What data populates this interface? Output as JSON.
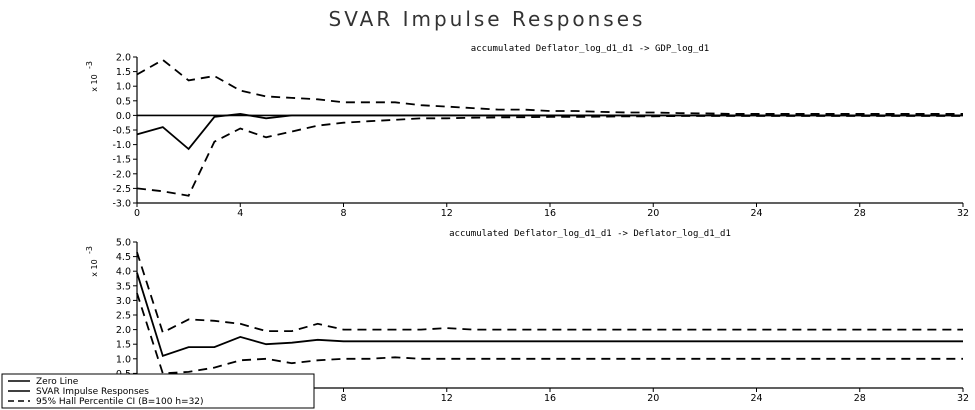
{
  "title": "SVAR Impulse Responses",
  "legend": {
    "items": [
      {
        "label": "Zero Line",
        "style": "solid"
      },
      {
        "label": "SVAR Impulse Responses",
        "style": "solid"
      },
      {
        "label": "95% Hall Percentile CI (B=100 h=32)",
        "style": "dashed"
      }
    ]
  },
  "chart_data": [
    {
      "type": "line",
      "title": "accumulated Deflator_log_d1_d1 -> GDP_log_d1",
      "scale_label": "x 10",
      "scale_exponent": "-3",
      "xlim": [
        0,
        32
      ],
      "ylim": [
        -3.0,
        2.0
      ],
      "xticks": [
        "0",
        "4",
        "8",
        "12",
        "16",
        "20",
        "24",
        "28",
        "32"
      ],
      "yticks": [
        "2.0",
        "1.5",
        "1.0",
        "0.5",
        "0.0",
        "-0.5",
        "-1.0",
        "-1.5",
        "-2.0",
        "-2.5",
        "-3.0"
      ],
      "x": [
        0,
        1,
        2,
        3,
        4,
        5,
        6,
        7,
        8,
        9,
        10,
        11,
        12,
        13,
        14,
        15,
        16,
        17,
        18,
        19,
        20,
        21,
        22,
        23,
        24,
        25,
        26,
        27,
        28,
        29,
        30,
        31,
        32
      ],
      "series": [
        {
          "name": "Zero Line",
          "style": "solid",
          "values": [
            0,
            0,
            0,
            0,
            0,
            0,
            0,
            0,
            0,
            0,
            0,
            0,
            0,
            0,
            0,
            0,
            0,
            0,
            0,
            0,
            0,
            0,
            0,
            0,
            0,
            0,
            0,
            0,
            0,
            0,
            0,
            0,
            0
          ]
        },
        {
          "name": "SVAR Impulse Responses",
          "style": "solid",
          "values": [
            -0.65,
            -0.4,
            -1.15,
            -0.05,
            0.05,
            -0.1,
            0.0,
            0.0,
            0.0,
            0.0,
            0.0,
            0.0,
            0.0,
            0.0,
            0.0,
            0.0,
            0.0,
            0.0,
            0.0,
            0.0,
            0.0,
            0.0,
            0.0,
            0.0,
            0.0,
            0.0,
            0.0,
            0.0,
            0.0,
            0.0,
            0.0,
            0.0,
            0.0
          ]
        },
        {
          "name": "95% Hall Percentile CI upper",
          "style": "dashed",
          "values": [
            1.4,
            1.9,
            1.2,
            1.35,
            0.85,
            0.65,
            0.6,
            0.55,
            0.45,
            0.45,
            0.45,
            0.35,
            0.3,
            0.25,
            0.2,
            0.2,
            0.15,
            0.15,
            0.12,
            0.1,
            0.1,
            0.08,
            0.07,
            0.05,
            0.05,
            0.05,
            0.05,
            0.05,
            0.05,
            0.05,
            0.05,
            0.05,
            0.05
          ]
        },
        {
          "name": "95% Hall Percentile CI lower",
          "style": "dashed",
          "values": [
            -2.5,
            -2.6,
            -2.75,
            -0.9,
            -0.45,
            -0.75,
            -0.55,
            -0.35,
            -0.25,
            -0.2,
            -0.15,
            -0.1,
            -0.1,
            -0.08,
            -0.07,
            -0.06,
            -0.05,
            -0.05,
            -0.04,
            -0.03,
            -0.03,
            -0.02,
            -0.02,
            -0.02,
            -0.02,
            -0.02,
            -0.02,
            -0.02,
            -0.02,
            -0.02,
            -0.02,
            -0.02,
            -0.02
          ]
        }
      ]
    },
    {
      "type": "line",
      "title": "accumulated Deflator_log_d1_d1 -> Deflator_log_d1_d1",
      "scale_label": "x 10",
      "scale_exponent": "-3",
      "xlim": [
        0,
        32
      ],
      "ylim": [
        0.0,
        5.0
      ],
      "xticks": [
        "0",
        "4",
        "8",
        "12",
        "16",
        "20",
        "24",
        "28",
        "32"
      ],
      "yticks": [
        "5.0",
        "4.5",
        "4.0",
        "3.5",
        "3.0",
        "2.5",
        "2.0",
        "1.5",
        "1.0",
        "0.5",
        "0.0"
      ],
      "x": [
        0,
        1,
        2,
        3,
        4,
        5,
        6,
        7,
        8,
        9,
        10,
        11,
        12,
        13,
        14,
        15,
        16,
        17,
        18,
        19,
        20,
        21,
        22,
        23,
        24,
        25,
        26,
        27,
        28,
        29,
        30,
        31,
        32
      ],
      "series": [
        {
          "name": "SVAR Impulse Responses",
          "style": "solid",
          "values": [
            3.95,
            1.1,
            1.4,
            1.4,
            1.75,
            1.5,
            1.55,
            1.65,
            1.6,
            1.6,
            1.6,
            1.6,
            1.6,
            1.6,
            1.6,
            1.6,
            1.6,
            1.6,
            1.6,
            1.6,
            1.6,
            1.6,
            1.6,
            1.6,
            1.6,
            1.6,
            1.6,
            1.6,
            1.6,
            1.6,
            1.6,
            1.6,
            1.6
          ]
        },
        {
          "name": "95% Hall Percentile CI upper",
          "style": "dashed",
          "values": [
            4.65,
            1.9,
            2.35,
            2.3,
            2.2,
            1.95,
            1.95,
            2.2,
            2.0,
            2.0,
            2.0,
            2.0,
            2.05,
            2.0,
            2.0,
            2.0,
            2.0,
            2.0,
            2.0,
            2.0,
            2.0,
            2.0,
            2.0,
            2.0,
            2.0,
            2.0,
            2.0,
            2.0,
            2.0,
            2.0,
            2.0,
            2.0,
            2.0
          ]
        },
        {
          "name": "95% Hall Percentile CI lower",
          "style": "dashed",
          "values": [
            3.25,
            0.5,
            0.55,
            0.7,
            0.95,
            1.0,
            0.85,
            0.95,
            1.0,
            1.0,
            1.05,
            1.0,
            1.0,
            1.0,
            1.0,
            1.0,
            1.0,
            1.0,
            1.0,
            1.0,
            1.0,
            1.0,
            1.0,
            1.0,
            1.0,
            1.0,
            1.0,
            1.0,
            1.0,
            1.0,
            1.0,
            1.0,
            1.0
          ]
        }
      ]
    }
  ]
}
